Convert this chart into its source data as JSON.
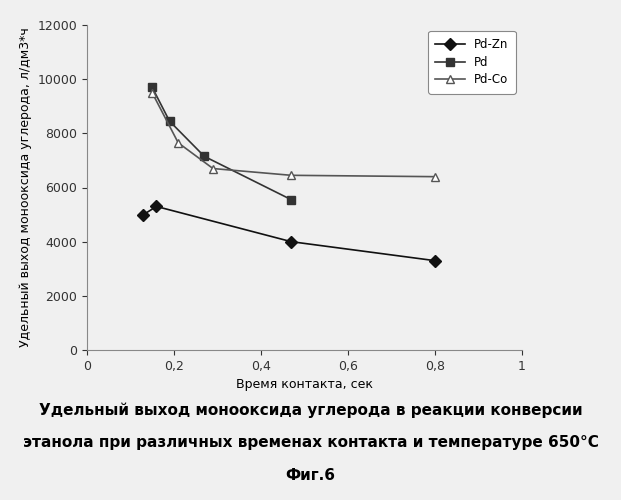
{
  "title_line1": "Удельный выход монооксида углерода в реакции конверсии",
  "title_line2": "этанола при различных временах контакта и температуре 650°C",
  "title_line3": "Фиг.6",
  "ylabel": "Удельный выход монооксида углерода, л/дм3*ч",
  "xlabel": "Время контакта, сек",
  "xlim": [
    0,
    1
  ],
  "ylim": [
    0,
    12000
  ],
  "xticks": [
    0,
    0.2,
    0.4,
    0.6,
    0.8,
    1.0
  ],
  "yticks": [
    0,
    2000,
    4000,
    6000,
    8000,
    10000,
    12000
  ],
  "series": [
    {
      "label": "Pd-Zn",
      "x": [
        0.13,
        0.16,
        0.47,
        0.8
      ],
      "y": [
        5000,
        5300,
        4000,
        3300
      ],
      "color": "#111111",
      "marker": "D",
      "markersize": 6,
      "linewidth": 1.2,
      "linestyle": "-",
      "markerfacecolor": "#111111"
    },
    {
      "label": "Pd",
      "x": [
        0.15,
        0.19,
        0.27,
        0.47
      ],
      "y": [
        9700,
        8450,
        7150,
        5550
      ],
      "color": "#333333",
      "marker": "s",
      "markersize": 6,
      "linewidth": 1.2,
      "linestyle": "-",
      "markerfacecolor": "#333333"
    },
    {
      "label": "Pd-Co",
      "x": [
        0.15,
        0.21,
        0.29,
        0.47,
        0.8
      ],
      "y": [
        9500,
        7650,
        6700,
        6450,
        6400
      ],
      "color": "#555555",
      "marker": "^",
      "markersize": 6,
      "linewidth": 1.2,
      "linestyle": "-",
      "markerfacecolor": "white"
    }
  ],
  "background_color": "#f0f0f0",
  "plot_background": "#f0f0f0",
  "title_fontsize": 11,
  "axis_fontsize": 9,
  "tick_fontsize": 9
}
